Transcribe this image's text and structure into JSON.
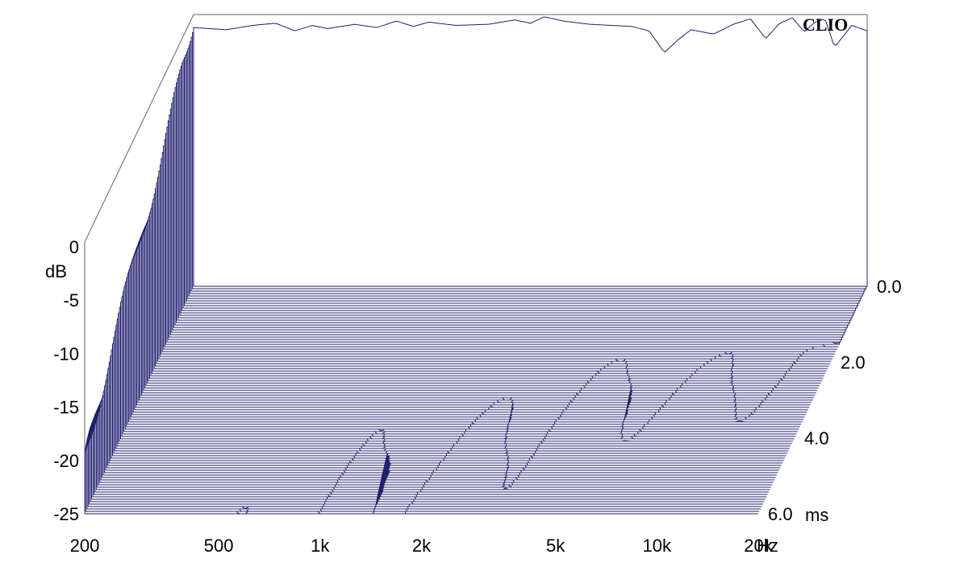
{
  "chart_data": {
    "type": "waterfall",
    "title": "",
    "brand": "CLIO",
    "x_unit": "Hz",
    "y_unit": "dB",
    "z_unit": "ms",
    "x_scale": "log",
    "x_ticks": [
      {
        "value": 200,
        "label": "200"
      },
      {
        "value": 500,
        "label": "500"
      },
      {
        "value": 1000,
        "label": "1k"
      },
      {
        "value": 2000,
        "label": "2k"
      },
      {
        "value": 5000,
        "label": "5k"
      },
      {
        "value": 10000,
        "label": "10k"
      },
      {
        "value": 20000,
        "label": "20k"
      }
    ],
    "y_ticks": [
      {
        "value": 0,
        "label": "0"
      },
      {
        "value": -5,
        "label": "-5"
      },
      {
        "value": -10,
        "label": "-10"
      },
      {
        "value": -15,
        "label": "-15"
      },
      {
        "value": -20,
        "label": "-20"
      },
      {
        "value": -25,
        "label": "-25"
      }
    ],
    "z_ticks": [
      {
        "value": 0,
        "label": "0.0"
      },
      {
        "value": 2,
        "label": "2.0"
      },
      {
        "value": 4,
        "label": "4.0"
      },
      {
        "value": 6,
        "label": "6.0"
      }
    ],
    "x_range": [
      200,
      20000
    ],
    "y_range": [
      -25,
      0
    ],
    "z_range": [
      0,
      6
    ],
    "base_response": {
      "freq": [
        200,
        250,
        300,
        350,
        400,
        450,
        500,
        600,
        700,
        800,
        900,
        1000,
        1200,
        1500,
        1800,
        2000,
        2200,
        2500,
        3000,
        3500,
        4000,
        4500,
        5000,
        5500,
        6000,
        7000,
        8000,
        9000,
        10000,
        11000,
        12000,
        13000,
        14000,
        15000,
        16000,
        18000,
        20000
      ],
      "db": [
        -1.2,
        -1.4,
        -1.0,
        -0.8,
        -1.5,
        -1.0,
        -1.3,
        -0.9,
        -1.2,
        -0.6,
        -1.1,
        -0.7,
        -1.0,
        -0.9,
        -0.5,
        -0.8,
        -0.2,
        -0.6,
        -0.9,
        -1.0,
        -1.1,
        -1.5,
        -3.5,
        -2.3,
        -1.4,
        -1.8,
        -0.9,
        -0.4,
        -2.2,
        -0.8,
        -0.3,
        -1.6,
        -0.7,
        -0.4,
        -3.0,
        -1.0,
        -1.5
      ]
    },
    "decay_rate_db_per_ms": [
      {
        "freq": 200,
        "rate": 4.5
      },
      {
        "freq": 300,
        "rate": 1.6
      },
      {
        "freq": 400,
        "rate": 2.0
      },
      {
        "freq": 500,
        "rate": 2.6
      },
      {
        "freq": 700,
        "rate": 3.2
      },
      {
        "freq": 1000,
        "rate": 4.2
      },
      {
        "freq": 2000,
        "rate": 5.5
      },
      {
        "freq": 5000,
        "rate": 8.5
      },
      {
        "freq": 10000,
        "rate": 9.5
      },
      {
        "freq": 20000,
        "rate": 12.0
      }
    ],
    "slices": 95
  }
}
